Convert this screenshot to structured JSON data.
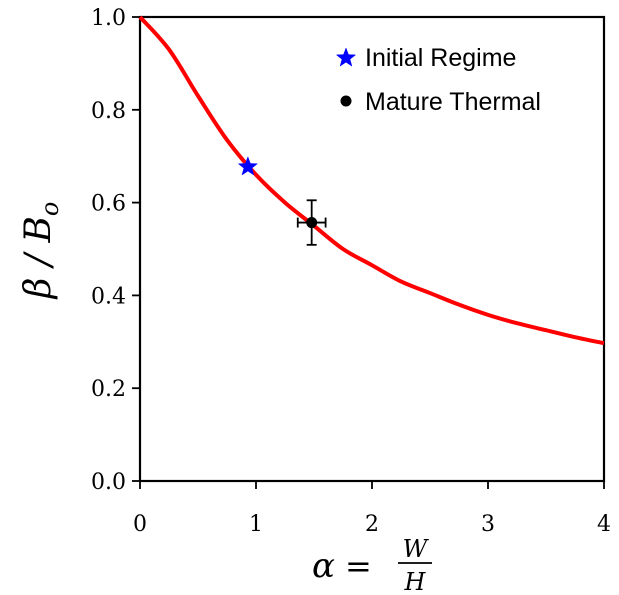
{
  "chart_data": {
    "type": "line",
    "xlim": [
      0,
      4
    ],
    "ylim": [
      0.0,
      1.0
    ],
    "x_ticks": [
      0,
      1,
      2,
      3,
      4
    ],
    "x_tick_labels": [
      "0",
      "1",
      "2",
      "3",
      "4"
    ],
    "y_ticks": [
      0.0,
      0.2,
      0.4,
      0.6,
      0.8,
      1.0
    ],
    "y_tick_labels": [
      "0.0",
      "0.2",
      "0.4",
      "0.6",
      "0.8",
      "1.0"
    ],
    "xlabel": "α = W/H",
    "ylabel": "β / B_o",
    "grid": false,
    "legend_position": "top-right",
    "series": [
      {
        "kind": "curve",
        "color": "#ff0000",
        "x": [
          0.0,
          0.25,
          0.5,
          0.75,
          1.0,
          1.25,
          1.5,
          1.75,
          2.0,
          2.25,
          2.5,
          2.75,
          3.0,
          3.25,
          3.5,
          3.75,
          4.0
        ],
        "y": [
          1.0,
          0.93,
          0.83,
          0.735,
          0.66,
          0.6,
          0.55,
          0.5,
          0.465,
          0.43,
          0.405,
          0.38,
          0.358,
          0.34,
          0.325,
          0.31,
          0.297
        ]
      },
      {
        "kind": "point",
        "name": "Initial Regime",
        "marker": "star",
        "color": "#0000ff",
        "x": 0.93,
        "y": 0.677
      },
      {
        "kind": "point",
        "name": "Mature Thermal",
        "marker": "circle",
        "color": "#000000",
        "x": 1.48,
        "y": 0.557,
        "x_err": 0.12,
        "y_err": 0.048
      }
    ],
    "legend": [
      "Initial Regime",
      "Mature Thermal"
    ]
  }
}
